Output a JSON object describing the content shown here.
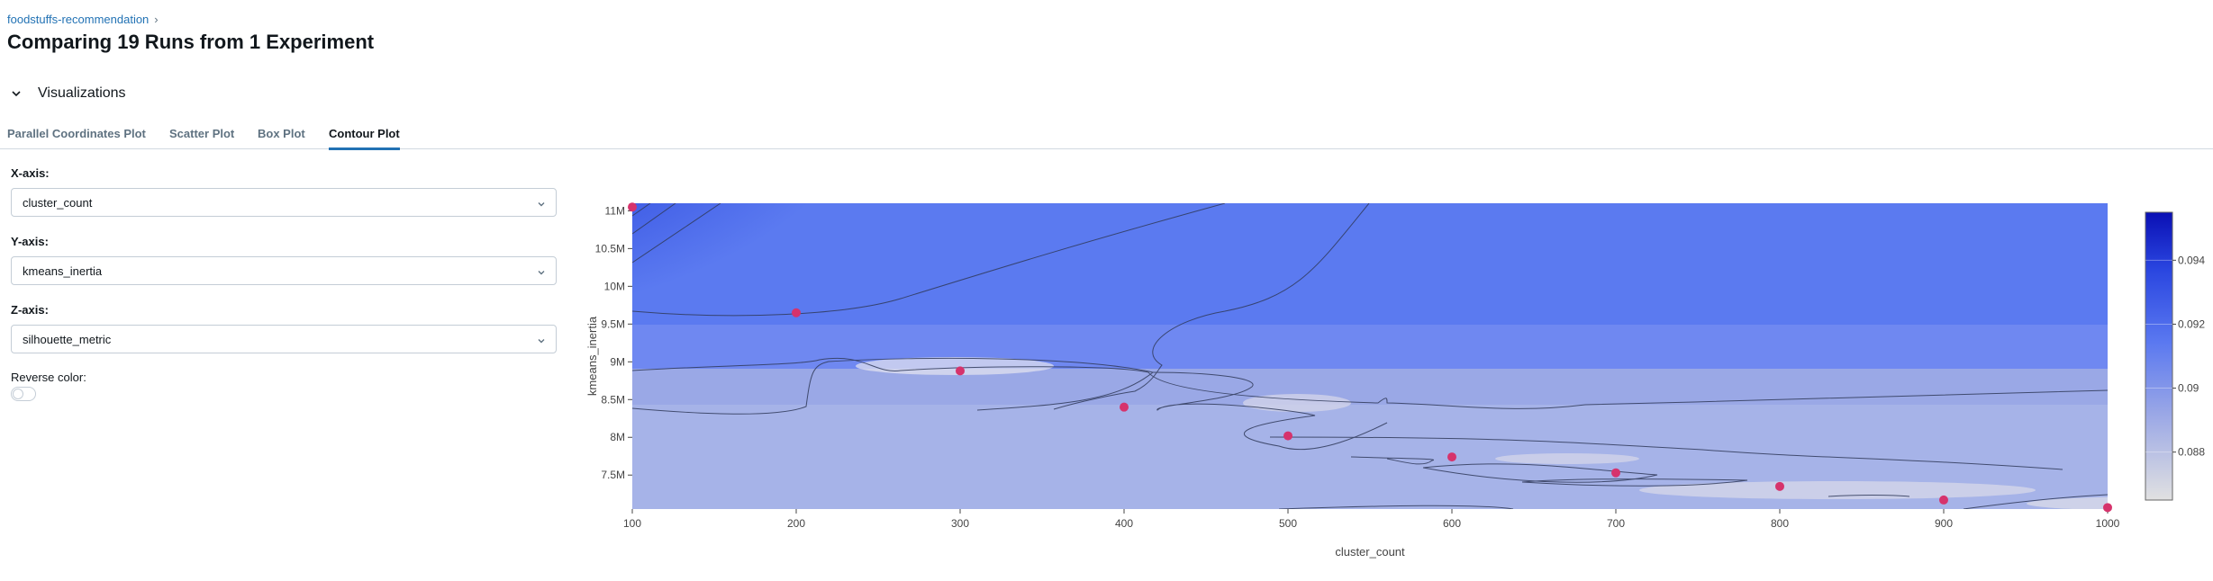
{
  "breadcrumb": {
    "experiment": "foodstuffs-recommendation",
    "separator": "›"
  },
  "page": {
    "title": "Comparing 19 Runs from 1 Experiment"
  },
  "section": {
    "title": "Visualizations",
    "icon": "chevron-down-icon"
  },
  "tabs": [
    {
      "label": "Parallel Coordinates Plot",
      "active": false
    },
    {
      "label": "Scatter Plot",
      "active": false
    },
    {
      "label": "Box Plot",
      "active": false
    },
    {
      "label": "Contour Plot",
      "active": true
    }
  ],
  "controls": {
    "x_axis": {
      "label": "X-axis:",
      "value": "cluster_count"
    },
    "y_axis": {
      "label": "Y-axis:",
      "value": "kmeans_inertia"
    },
    "z_axis": {
      "label": "Z-axis:",
      "value": "silhouette_metric"
    },
    "reverse_color": {
      "label": "Reverse color:",
      "enabled": false
    }
  },
  "colors": {
    "accent": "#2272b4",
    "marker": "#d6336c",
    "color_low": "#e1e1e1",
    "color_high": "#0a0fb4"
  },
  "chart_data": {
    "type": "contour",
    "xlabel": "cluster_count",
    "ylabel": "kmeans_inertia",
    "xlim": [
      100,
      1000
    ],
    "ylim": [
      7050000,
      11100000
    ],
    "x_ticks": [
      100,
      200,
      300,
      400,
      500,
      600,
      700,
      800,
      900,
      1000
    ],
    "y_ticks": [
      {
        "value": 7500000,
        "label": "7.5M"
      },
      {
        "value": 8000000,
        "label": "8M"
      },
      {
        "value": 8500000,
        "label": "8.5M"
      },
      {
        "value": 9000000,
        "label": "9M"
      },
      {
        "value": 9500000,
        "label": "9.5M"
      },
      {
        "value": 10000000,
        "label": "10M"
      },
      {
        "value": 10500000,
        "label": "10.5M"
      },
      {
        "value": 11000000,
        "label": "11M"
      }
    ],
    "points": [
      {
        "x": 100,
        "y": 11050000
      },
      {
        "x": 200,
        "y": 9650000
      },
      {
        "x": 300,
        "y": 8880000
      },
      {
        "x": 400,
        "y": 8400000
      },
      {
        "x": 500,
        "y": 8020000
      },
      {
        "x": 600,
        "y": 7740000
      },
      {
        "x": 700,
        "y": 7530000
      },
      {
        "x": 800,
        "y": 7350000
      },
      {
        "x": 900,
        "y": 7170000
      },
      {
        "x": 1000,
        "y": 7070000
      }
    ],
    "colorbar": {
      "range": [
        0.0865,
        0.0955
      ],
      "ticks": [
        {
          "value": 0.094,
          "label": "0.094"
        },
        {
          "value": 0.092,
          "label": "0.092"
        },
        {
          "value": 0.09,
          "label": "0.09"
        },
        {
          "value": 0.088,
          "label": "0.088"
        }
      ]
    }
  }
}
